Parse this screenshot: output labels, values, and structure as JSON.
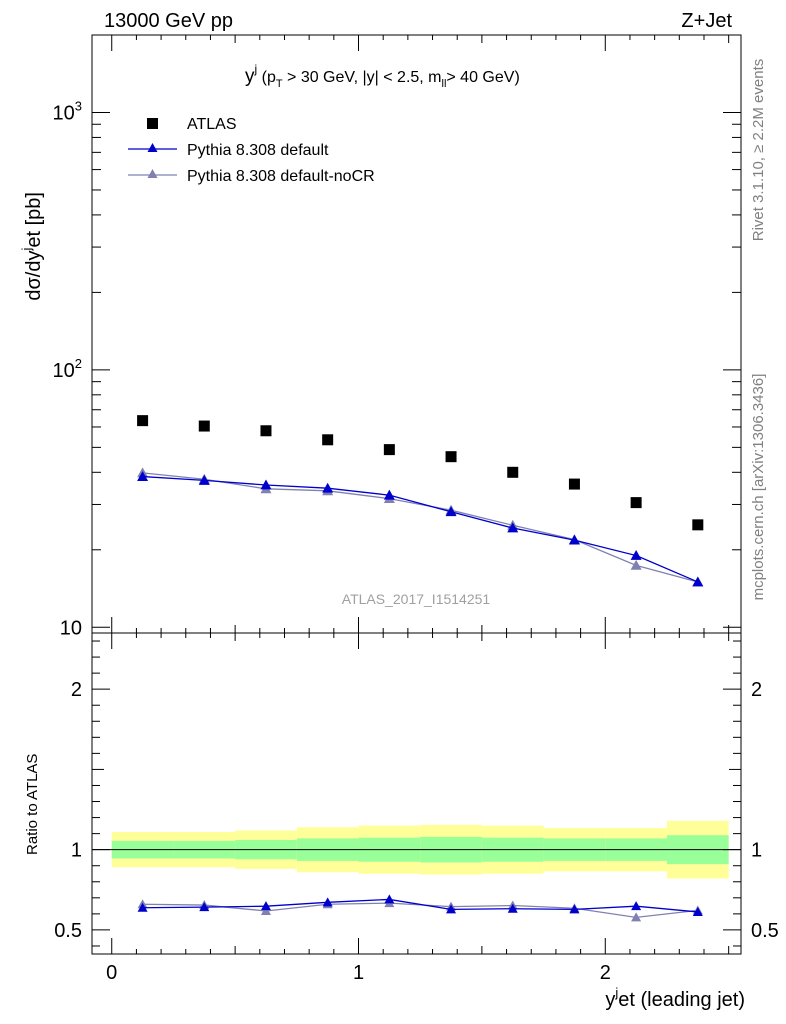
{
  "header": {
    "left": "13000 GeV pp",
    "right": "Z+Jet"
  },
  "side_labels": {
    "rivet": "Rivet 3.1.10, ≥ 2.2M events",
    "mcplots": "mcplots.cern.ch [arXiv:1306.3436]"
  },
  "colors": {
    "atlas": "#000000",
    "default": "#0000cc",
    "noCR": "#8080b3",
    "band_inner": "#99ff99",
    "band_outer": "#ffff99"
  },
  "chart_data": [
    {
      "type": "scatter",
      "title": "",
      "annotation": {
        "main": "y",
        "sup": "j",
        "cuts_a": " (p",
        "cuts_sub": "T",
        "cuts_b": " > 30 GeV, |y| < 2.5, m",
        "cuts_sub2": "ll",
        "cuts_c": "> 40 GeV)"
      },
      "watermark": "ATLAS_2017_I1514251",
      "ylabel": "dσ/dy",
      "ylabel_sup": "j",
      "ylabel_tail": "et [pb]",
      "yscale": "log",
      "ylim": [
        9.5,
        2000
      ],
      "xlim": [
        -0.08,
        2.55
      ],
      "yticks": [
        {
          "v": 10,
          "base": "10",
          "exp": ""
        },
        {
          "v": 100,
          "base": "10",
          "exp": "2"
        },
        {
          "v": 1000,
          "base": "10",
          "exp": "3"
        }
      ],
      "x": [
        0.125,
        0.375,
        0.625,
        0.875,
        1.125,
        1.375,
        1.625,
        1.875,
        2.125,
        2.375
      ],
      "series": [
        {
          "name": "ATLAS",
          "marker": "square",
          "values": [
            63.5,
            60.5,
            58.0,
            53.5,
            49.0,
            46.0,
            40.0,
            36.0,
            30.5,
            25.0
          ]
        },
        {
          "name": "Pythia 8.308 default",
          "marker": "triangle",
          "values": [
            38.5,
            37.2,
            35.7,
            34.7,
            32.6,
            28.1,
            24.3,
            21.8,
            19.0,
            15.0
          ]
        },
        {
          "name": "Pythia 8.308 default-noCR",
          "marker": "triangle",
          "values": [
            39.8,
            37.6,
            34.5,
            33.9,
            31.6,
            28.5,
            24.9,
            21.9,
            17.4,
            15.0
          ]
        }
      ]
    },
    {
      "type": "scatter",
      "ylabel": "Ratio to ATLAS",
      "xlabel": "y",
      "xlabel_sup": "j",
      "xlabel_tail": "et (leading jet)",
      "ylim": [
        0.35,
        2.35
      ],
      "xlim": [
        -0.08,
        2.55
      ],
      "yticks": [
        {
          "v": 0.5,
          "label": "0.5"
        },
        {
          "v": 1,
          "label": "1"
        },
        {
          "v": 2,
          "label": "2"
        }
      ],
      "xticks": [
        {
          "v": 0,
          "label": "0"
        },
        {
          "v": 1,
          "label": "1"
        },
        {
          "v": 2,
          "label": "2"
        }
      ],
      "bins": [
        0,
        0.25,
        0.5,
        0.75,
        1.0,
        1.25,
        1.5,
        1.75,
        2.0,
        2.25,
        2.5
      ],
      "band_inner": [
        [
          0.945,
          1.055
        ],
        [
          0.945,
          1.055
        ],
        [
          0.94,
          1.06
        ],
        [
          0.93,
          1.07
        ],
        [
          0.925,
          1.075
        ],
        [
          0.92,
          1.08
        ],
        [
          0.925,
          1.075
        ],
        [
          0.93,
          1.07
        ],
        [
          0.93,
          1.07
        ],
        [
          0.91,
          1.09
        ]
      ],
      "band_outer": [
        [
          0.89,
          1.11
        ],
        [
          0.89,
          1.11
        ],
        [
          0.88,
          1.12
        ],
        [
          0.86,
          1.14
        ],
        [
          0.85,
          1.15
        ],
        [
          0.845,
          1.155
        ],
        [
          0.85,
          1.15
        ],
        [
          0.865,
          1.135
        ],
        [
          0.865,
          1.135
        ],
        [
          0.82,
          1.18
        ]
      ],
      "x": [
        0.125,
        0.375,
        0.625,
        0.875,
        1.125,
        1.375,
        1.625,
        1.875,
        2.125,
        2.375
      ],
      "series": [
        {
          "name": "Pythia 8.308 default",
          "values": [
            0.638,
            0.642,
            0.648,
            0.672,
            0.69,
            0.628,
            0.632,
            0.628,
            0.648,
            0.612
          ],
          "errors": [
            0.012,
            0.012,
            0.013,
            0.018,
            0.018,
            0.016,
            0.016,
            0.016,
            0.02,
            0.022
          ]
        },
        {
          "name": "Pythia 8.308 default-noCR",
          "values": [
            0.66,
            0.655,
            0.618,
            0.66,
            0.667,
            0.645,
            0.652,
            0.635,
            0.578,
            0.622
          ],
          "errors": [
            0.012,
            0.012,
            0.013,
            0.016,
            0.016,
            0.016,
            0.018,
            0.018,
            0.02,
            0.022
          ]
        }
      ]
    }
  ]
}
